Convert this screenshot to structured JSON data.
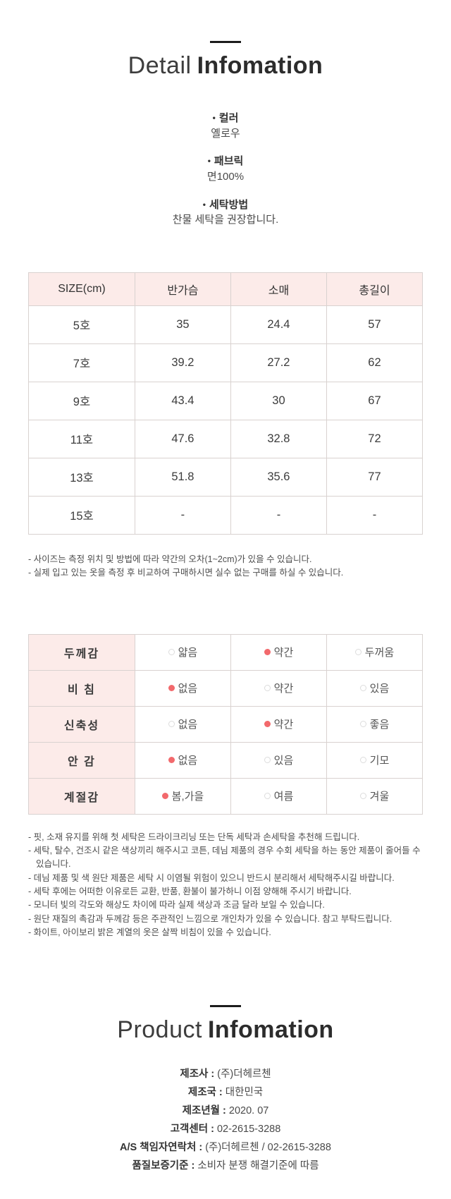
{
  "detail_section": {
    "title_light": "Detail",
    "title_bold": "Infomation",
    "specs": [
      {
        "label": "컬러",
        "value": "옐로우"
      },
      {
        "label": "패브릭",
        "value": "면100%"
      },
      {
        "label": "세탁방법",
        "value": "찬물 세탁을 권장합니다."
      }
    ]
  },
  "size_table": {
    "headers": [
      "SIZE(cm)",
      "반가슴",
      "소매",
      "총길이"
    ],
    "rows": [
      [
        "5호",
        "35",
        "24.4",
        "57"
      ],
      [
        "7호",
        "39.2",
        "27.2",
        "62"
      ],
      [
        "9호",
        "43.4",
        "30",
        "67"
      ],
      [
        "11호",
        "47.6",
        "32.8",
        "72"
      ],
      [
        "13호",
        "51.8",
        "35.6",
        "77"
      ],
      [
        "15호",
        "-",
        "-",
        "-"
      ]
    ],
    "notes": [
      "사이즈는 측정 위치 및 방법에 따라 약간의 오차(1~2cm)가 있을 수 있습니다.",
      "실제 입고 있는 옷을 측정 후 비교하여 구매하시면 실수 없는 구매를 하실 수 있습니다."
    ]
  },
  "fabric_table": {
    "rows": [
      {
        "label": "두께감",
        "options": [
          {
            "text": "얇음",
            "selected": false
          },
          {
            "text": "약간",
            "selected": true
          },
          {
            "text": "두꺼움",
            "selected": false
          }
        ]
      },
      {
        "label": "비 침",
        "options": [
          {
            "text": "없음",
            "selected": true
          },
          {
            "text": "약간",
            "selected": false
          },
          {
            "text": "있음",
            "selected": false
          }
        ]
      },
      {
        "label": "신축성",
        "options": [
          {
            "text": "없음",
            "selected": false
          },
          {
            "text": "약간",
            "selected": true
          },
          {
            "text": "좋음",
            "selected": false
          }
        ]
      },
      {
        "label": "안 감",
        "options": [
          {
            "text": "없음",
            "selected": true
          },
          {
            "text": "있음",
            "selected": false
          },
          {
            "text": "기모",
            "selected": false
          }
        ]
      },
      {
        "label": "계절감",
        "options": [
          {
            "text": "봄,가을",
            "selected": true
          },
          {
            "text": "여름",
            "selected": false
          },
          {
            "text": "겨울",
            "selected": false
          }
        ]
      }
    ],
    "notes": [
      "핏, 소재 유지를 위해 첫 세탁은 드라이크리닝 또는 단독 세탁과 손세탁을 추천해 드립니다.",
      "세탁, 탈수, 건조시 같은 색상끼리 해주시고 코튼, 데님 제품의 경우 수회 세탁을 하는 동안 제품이 줄어들 수 있습니다.",
      "데님 제품 및 색 원단 제품은 세탁 시 이염될 위험이 있으니 반드시 분리해서 세탁해주시길 바랍니다.",
      "세탁 후에는 어떠한 이유로든 교환, 반품, 환불이 불가하니 이점 양해해 주시기 바랍니다.",
      "모니터 빛의 각도와 해상도 차이에 따라 실제 색상과 조금 달라 보일 수 있습니다.",
      "원단 재질의 촉감과 두께감 등은 주관적인 느낌으로 개인차가 있을 수 있습니다. 참고 부탁드립니다.",
      "화이트, 아이보리 밝은 계열의 옷은 살짝 비침이 있을 수 있습니다."
    ]
  },
  "product_section": {
    "title_light": "Product",
    "title_bold": "Infomation",
    "label_separator": " : ",
    "fields": [
      {
        "label": "제조사",
        "value": "(주)더헤르첸"
      },
      {
        "label": "제조국",
        "value": "대한민국"
      },
      {
        "label": "제조년월",
        "value": "2020. 07"
      },
      {
        "label": "고객센터",
        "value": "02-2615-3288"
      },
      {
        "label": "A/S 책임자연락처",
        "value": "(주)더헤르첸 / 02-2615-3288"
      },
      {
        "label": "품질보증기준",
        "value": "소비자 분쟁 해결기준에 따름"
      }
    ]
  },
  "colors": {
    "table_header_bg": "#fcebe9",
    "selected_dot": "#f2696c",
    "table_border": "#d9d2d0"
  }
}
